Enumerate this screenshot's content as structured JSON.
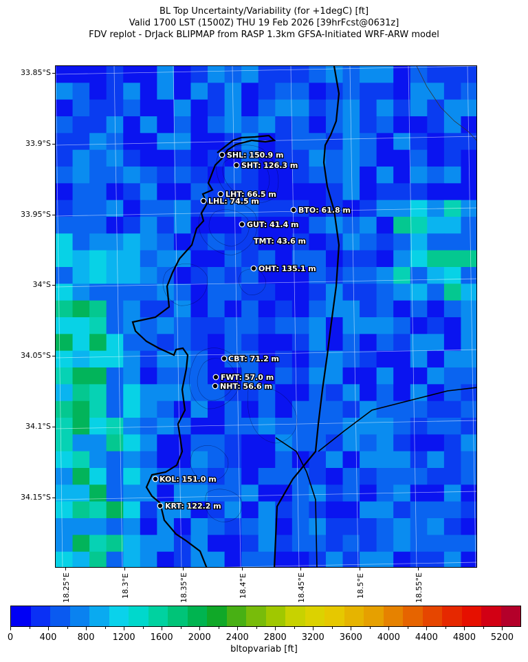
{
  "header": {
    "title_line1": "BL Top Uncertainty/Variability (for +1degC) [ft]",
    "title_line2": "Valid 1700 LST (1500Z) THU 19 Feb 2026 [39hrFcst@0631z]",
    "title_line3": "FDV replot - DrJack BLIPMAP from RASP 1.3km GFSA-Initiated WRF-ARW model"
  },
  "map": {
    "lat_labels": [
      "33.85°S",
      "33.9°S",
      "33.95°S",
      "34°S",
      "34.05°S",
      "34.1°S",
      "34.15°S"
    ],
    "lon_labels": [
      "18.25°E",
      "18.3°E",
      "18.35°E",
      "18.4°E",
      "18.45°E",
      "18.5°E",
      "18.55°E"
    ],
    "sites": [
      {
        "label": "SHL: 150.9 m"
      },
      {
        "label": "SHT: 126.3 m"
      },
      {
        "label": "LHT: 66.5 m"
      },
      {
        "label": "LHL: 74.5 m"
      },
      {
        "label": "BTO: 61.8 m"
      },
      {
        "label": "GUT: 41.4 m"
      },
      {
        "label": "TMT: 43.6 m"
      },
      {
        "label": "OHT: 135.1 m"
      },
      {
        "label": "CBT: 71.2 m"
      },
      {
        "label": "FWT: 57.0 m"
      },
      {
        "label": "NHT: 56.6 m"
      },
      {
        "label": "KOL: 151.0 m"
      },
      {
        "label": "KRT: 122.2 m"
      }
    ],
    "field_colors": [
      "#0a14f0",
      "#0a3cf0",
      "#0a64f0",
      "#0a8cf0",
      "#0ab4f0",
      "#08d2e6",
      "#06d2b4",
      "#04c890",
      "#02b45a"
    ]
  },
  "colorbar": {
    "colors": [
      "#0000f5",
      "#0a30f5",
      "#0a5af0",
      "#0a82f0",
      "#0aaaf0",
      "#0ad2eb",
      "#00d8cc",
      "#00d2a0",
      "#00c478",
      "#00b450",
      "#10a828",
      "#48b014",
      "#78bc0a",
      "#a0c800",
      "#c8d200",
      "#dcd200",
      "#e6c800",
      "#e6b400",
      "#e6a000",
      "#e68200",
      "#e66400",
      "#e64600",
      "#e62800",
      "#e61000",
      "#d20014",
      "#b4002a"
    ],
    "tick_labels": [
      "0",
      "400",
      "800",
      "1200",
      "1600",
      "2000",
      "2400",
      "2800",
      "3200",
      "3600",
      "4000",
      "4400",
      "4800",
      "5200"
    ],
    "title": "bltopvariab [ft]"
  }
}
